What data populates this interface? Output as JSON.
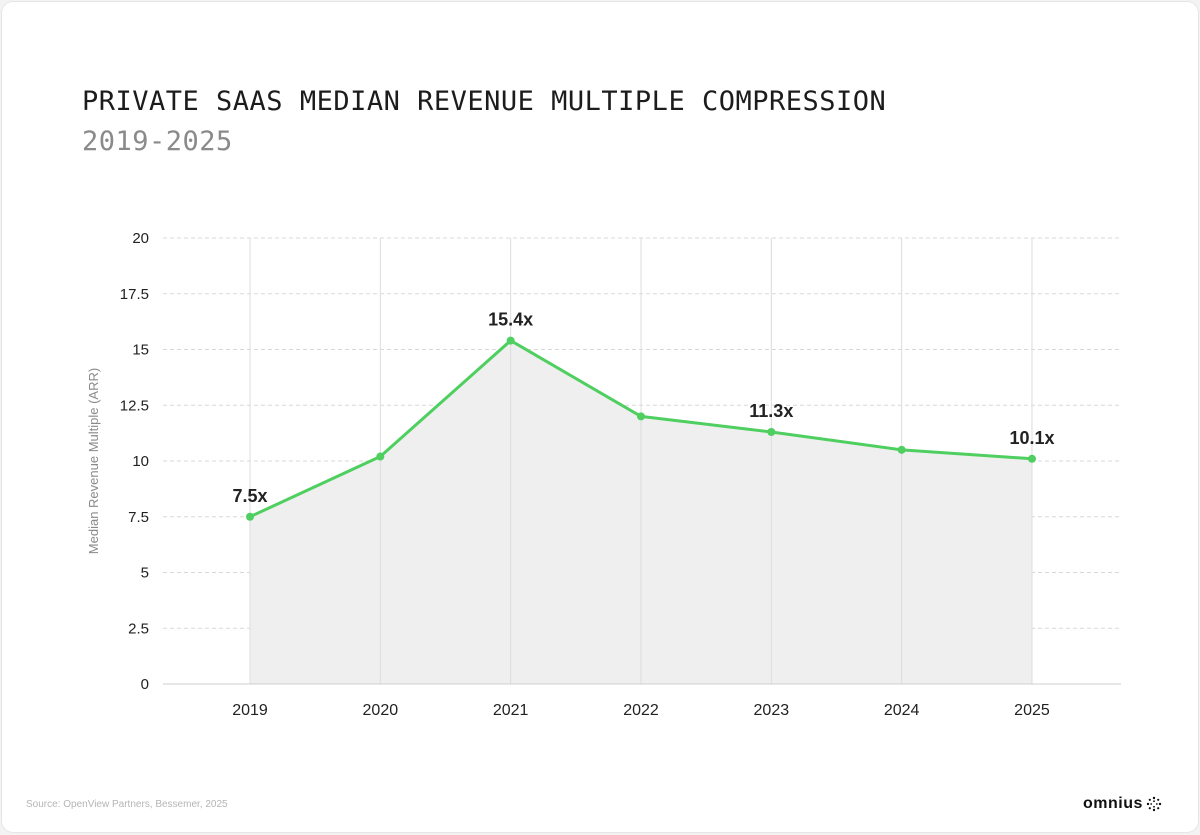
{
  "title": "PRIVATE SAAS MEDIAN REVENUE MULTIPLE COMPRESSION",
  "subtitle": "2019-2025",
  "source": "Source: OpenView Partners, Bessemer, 2025",
  "logo": "omnius",
  "colors": {
    "line": "#4fcf5f",
    "area": "#efefef",
    "grid": "#d8d8d8"
  },
  "chart_data": {
    "type": "area",
    "title": "PRIVATE SAAS MEDIAN REVENUE MULTIPLE COMPRESSION",
    "subtitle": "2019-2025",
    "xlabel": "",
    "ylabel": "Median Revenue Multiple (ARR)",
    "ylim": [
      0,
      20
    ],
    "yticks": [
      "0",
      "2.5",
      "5",
      "7.5",
      "10",
      "12.5",
      "15",
      "17.5",
      "20"
    ],
    "grid": true,
    "categories": [
      "2019",
      "2020",
      "2021",
      "2022",
      "2023",
      "2024",
      "2025"
    ],
    "values": [
      7.5,
      10.2,
      15.4,
      12.0,
      11.3,
      10.5,
      10.1
    ],
    "data_labels": [
      "7.5x",
      "",
      "15.4x",
      "",
      "11.3x",
      "",
      "10.1x"
    ]
  }
}
